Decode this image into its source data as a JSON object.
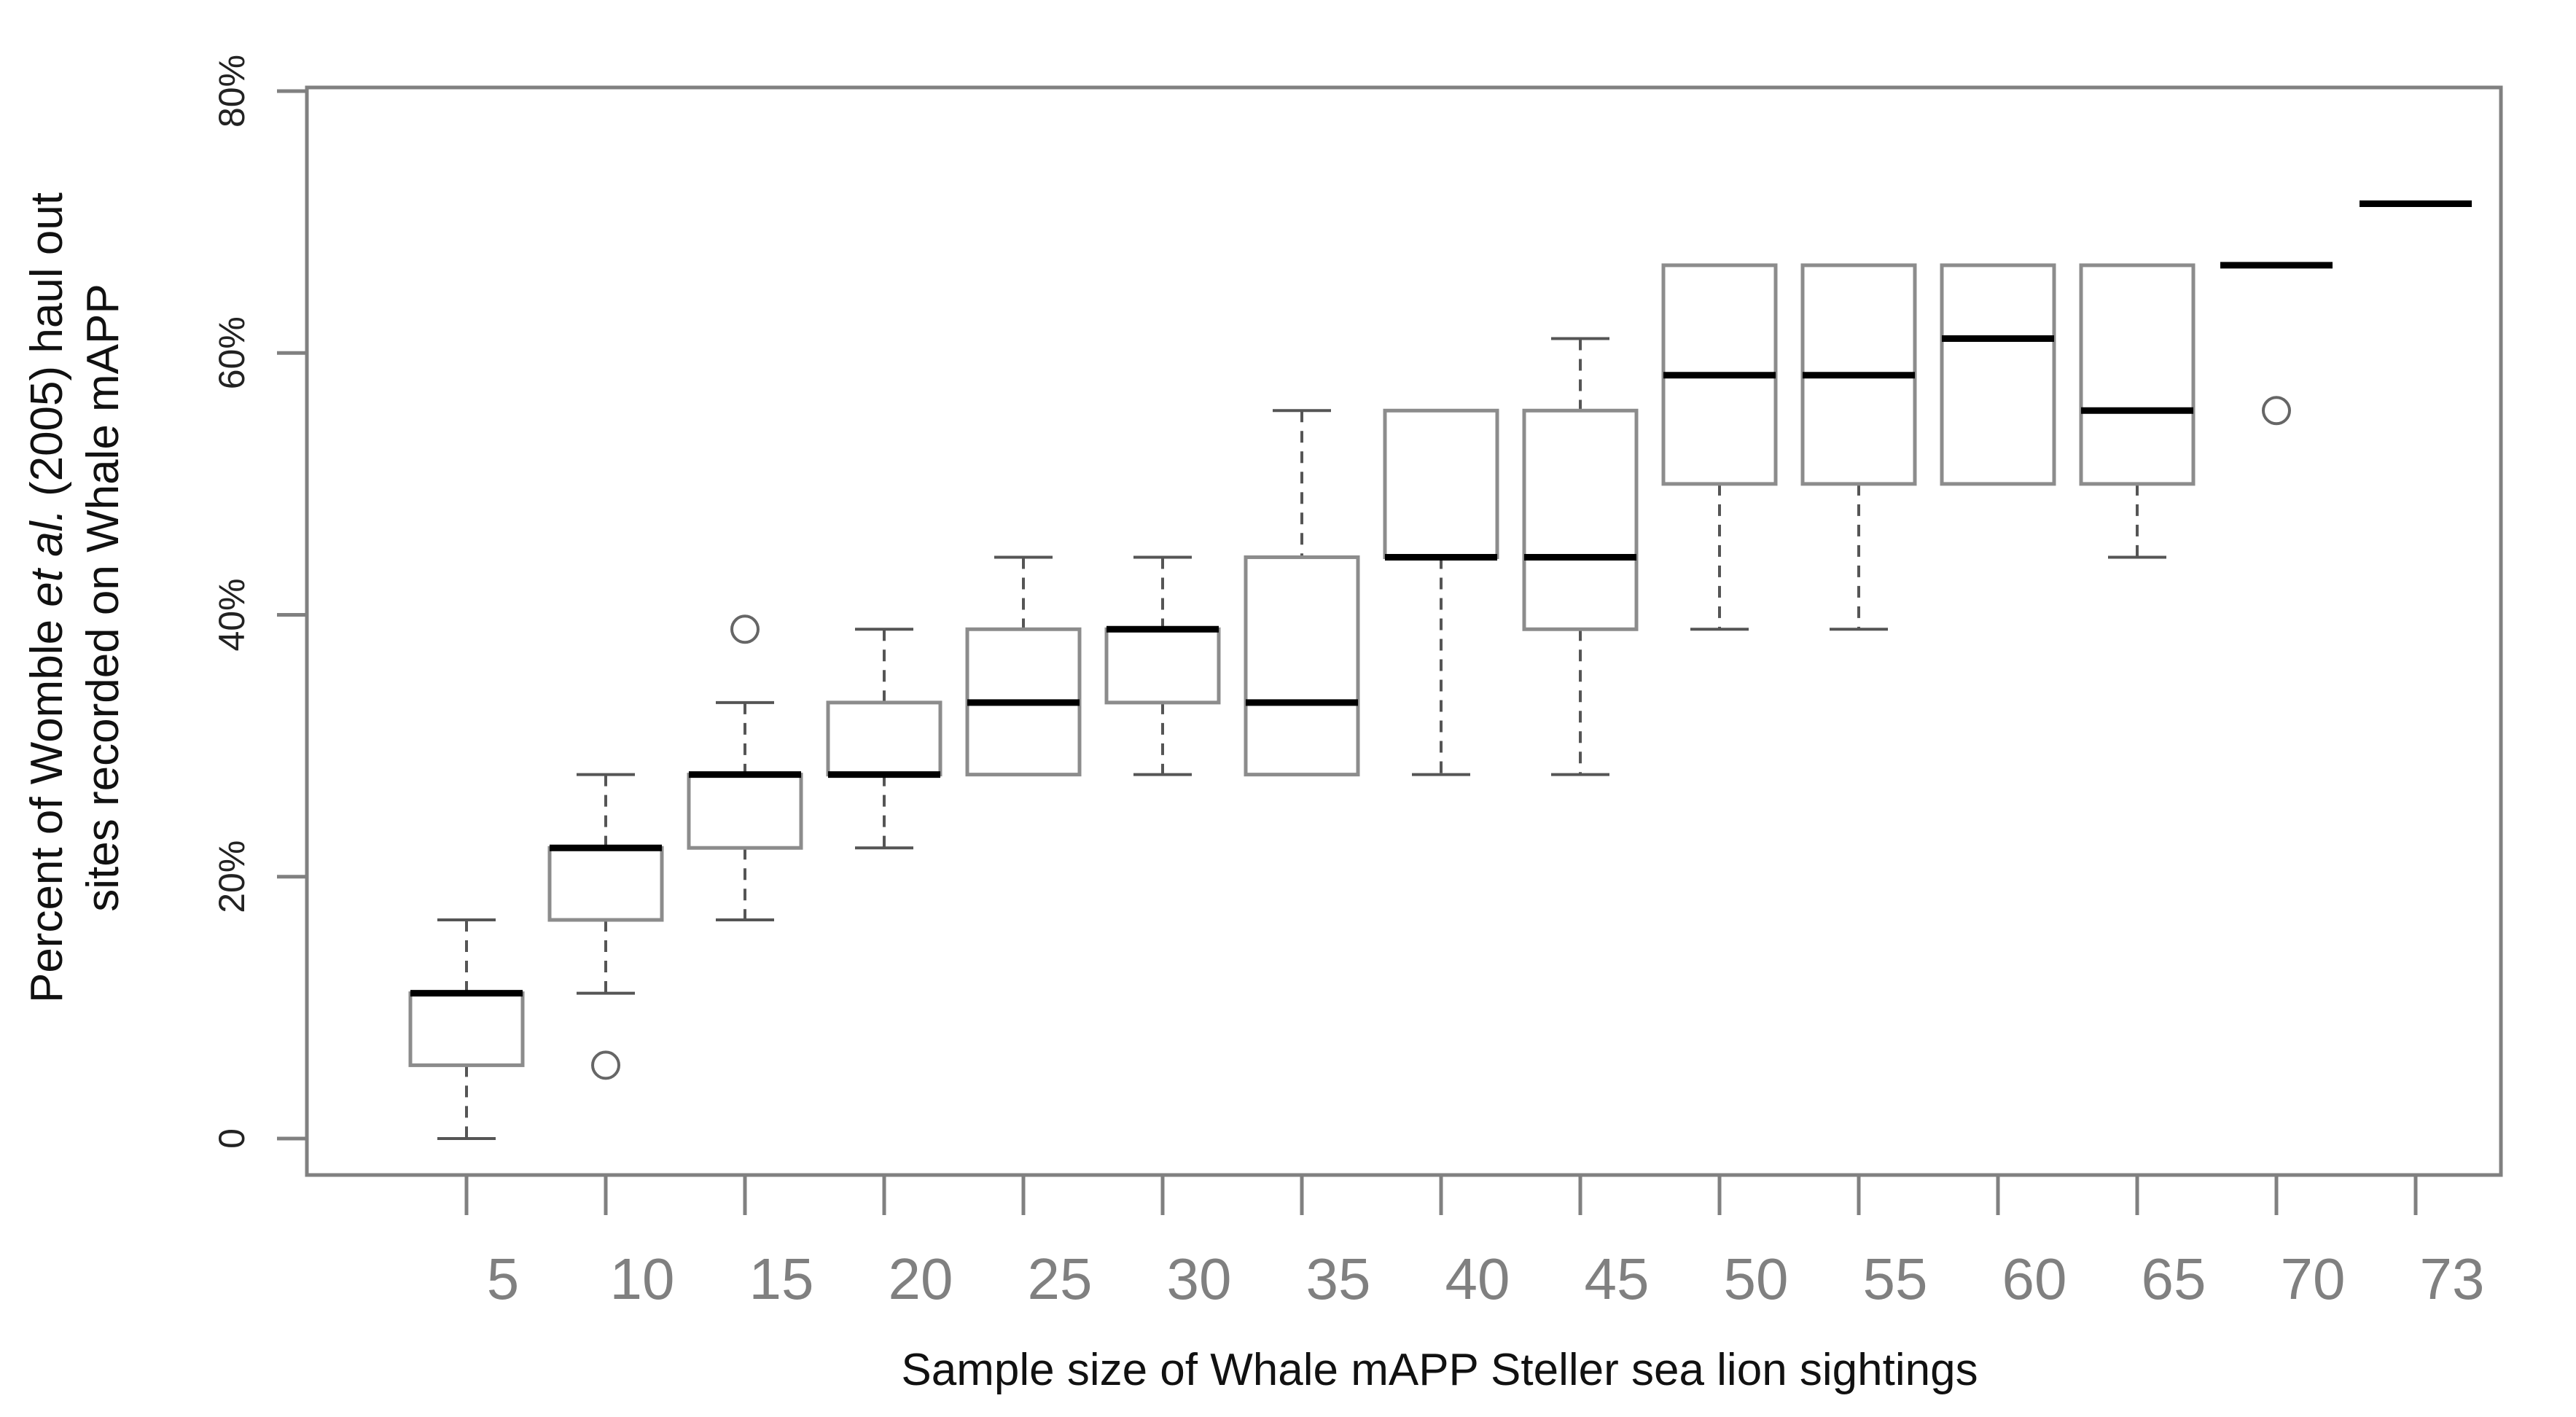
{
  "chart_data": {
    "type": "boxplot",
    "title": "",
    "xlabel": "Sample size of Whale mAPP Steller sea lion sightings",
    "ylabel": {
      "line1_prefix": "Percent of  Womble ",
      "line1_italic": "et al.",
      "line1_suffix": " (2005) haul out",
      "line2": "sites recorded on Whale mAPP"
    },
    "y_ticks": [
      {
        "value": 0,
        "label": "0"
      },
      {
        "value": 20,
        "label": "20%"
      },
      {
        "value": 40,
        "label": "40%"
      },
      {
        "value": 60,
        "label": "60%"
      },
      {
        "value": 80,
        "label": "80%"
      }
    ],
    "ylim": [
      0,
      80
    ],
    "grid": false,
    "categories": [
      "5",
      "10",
      "15",
      "20",
      "25",
      "30",
      "35",
      "40",
      "45",
      "50",
      "55",
      "60",
      "65",
      "70",
      "73"
    ],
    "boxes": [
      {
        "category": "5",
        "whisker_low": 0,
        "q1": 5.6,
        "median": 11.1,
        "q3": 11.1,
        "whisker_high": 16.7,
        "outliers": []
      },
      {
        "category": "10",
        "whisker_low": 11.1,
        "q1": 16.7,
        "median": 22.2,
        "q3": 22.2,
        "whisker_high": 27.8,
        "outliers": [
          5.6
        ]
      },
      {
        "category": "15",
        "whisker_low": 16.7,
        "q1": 22.2,
        "median": 27.8,
        "q3": 27.8,
        "whisker_high": 33.3,
        "outliers": [
          38.9
        ]
      },
      {
        "category": "20",
        "whisker_low": 22.2,
        "q1": 27.8,
        "median": 27.8,
        "q3": 33.3,
        "whisker_high": 38.9,
        "outliers": []
      },
      {
        "category": "25",
        "whisker_low": 27.8,
        "q1": 27.8,
        "median": 33.3,
        "q3": 38.9,
        "whisker_high": 44.4,
        "outliers": []
      },
      {
        "category": "30",
        "whisker_low": 27.8,
        "q1": 33.3,
        "median": 38.9,
        "q3": 38.9,
        "whisker_high": 44.4,
        "outliers": []
      },
      {
        "category": "35",
        "whisker_low": 27.8,
        "q1": 27.8,
        "median": 33.3,
        "q3": 44.4,
        "whisker_high": 55.6,
        "outliers": []
      },
      {
        "category": "40",
        "whisker_low": 27.8,
        "q1": 44.4,
        "median": 44.4,
        "q3": 55.6,
        "whisker_high": 55.6,
        "outliers": []
      },
      {
        "category": "45",
        "whisker_low": 27.8,
        "q1": 38.9,
        "median": 44.4,
        "q3": 55.6,
        "whisker_high": 61.1,
        "outliers": []
      },
      {
        "category": "50",
        "whisker_low": 38.9,
        "q1": 50,
        "median": 58.3,
        "q3": 66.7,
        "whisker_high": 66.7,
        "outliers": []
      },
      {
        "category": "55",
        "whisker_low": 38.9,
        "q1": 50,
        "median": 58.3,
        "q3": 66.7,
        "whisker_high": 66.7,
        "outliers": []
      },
      {
        "category": "60",
        "whisker_low": 50,
        "q1": 50,
        "median": 61.1,
        "q3": 66.7,
        "whisker_high": 66.7,
        "outliers": []
      },
      {
        "category": "65",
        "whisker_low": 44.4,
        "q1": 50,
        "median": 55.6,
        "q3": 66.7,
        "whisker_high": 66.7,
        "outliers": []
      },
      {
        "category": "70",
        "whisker_low": 66.7,
        "q1": 66.7,
        "median": 66.7,
        "q3": 66.7,
        "whisker_high": 66.7,
        "outliers": [
          55.6
        ]
      },
      {
        "category": "73",
        "whisker_low": 71.4,
        "q1": 71.4,
        "median": 71.4,
        "q3": 71.4,
        "whisker_high": 71.4,
        "outliers": []
      }
    ],
    "colors": {
      "box_stroke": "#8c8c8c",
      "median": "#000000",
      "whisker": "#555555",
      "frame": "#808080",
      "x_tick_label": "#808080"
    }
  }
}
